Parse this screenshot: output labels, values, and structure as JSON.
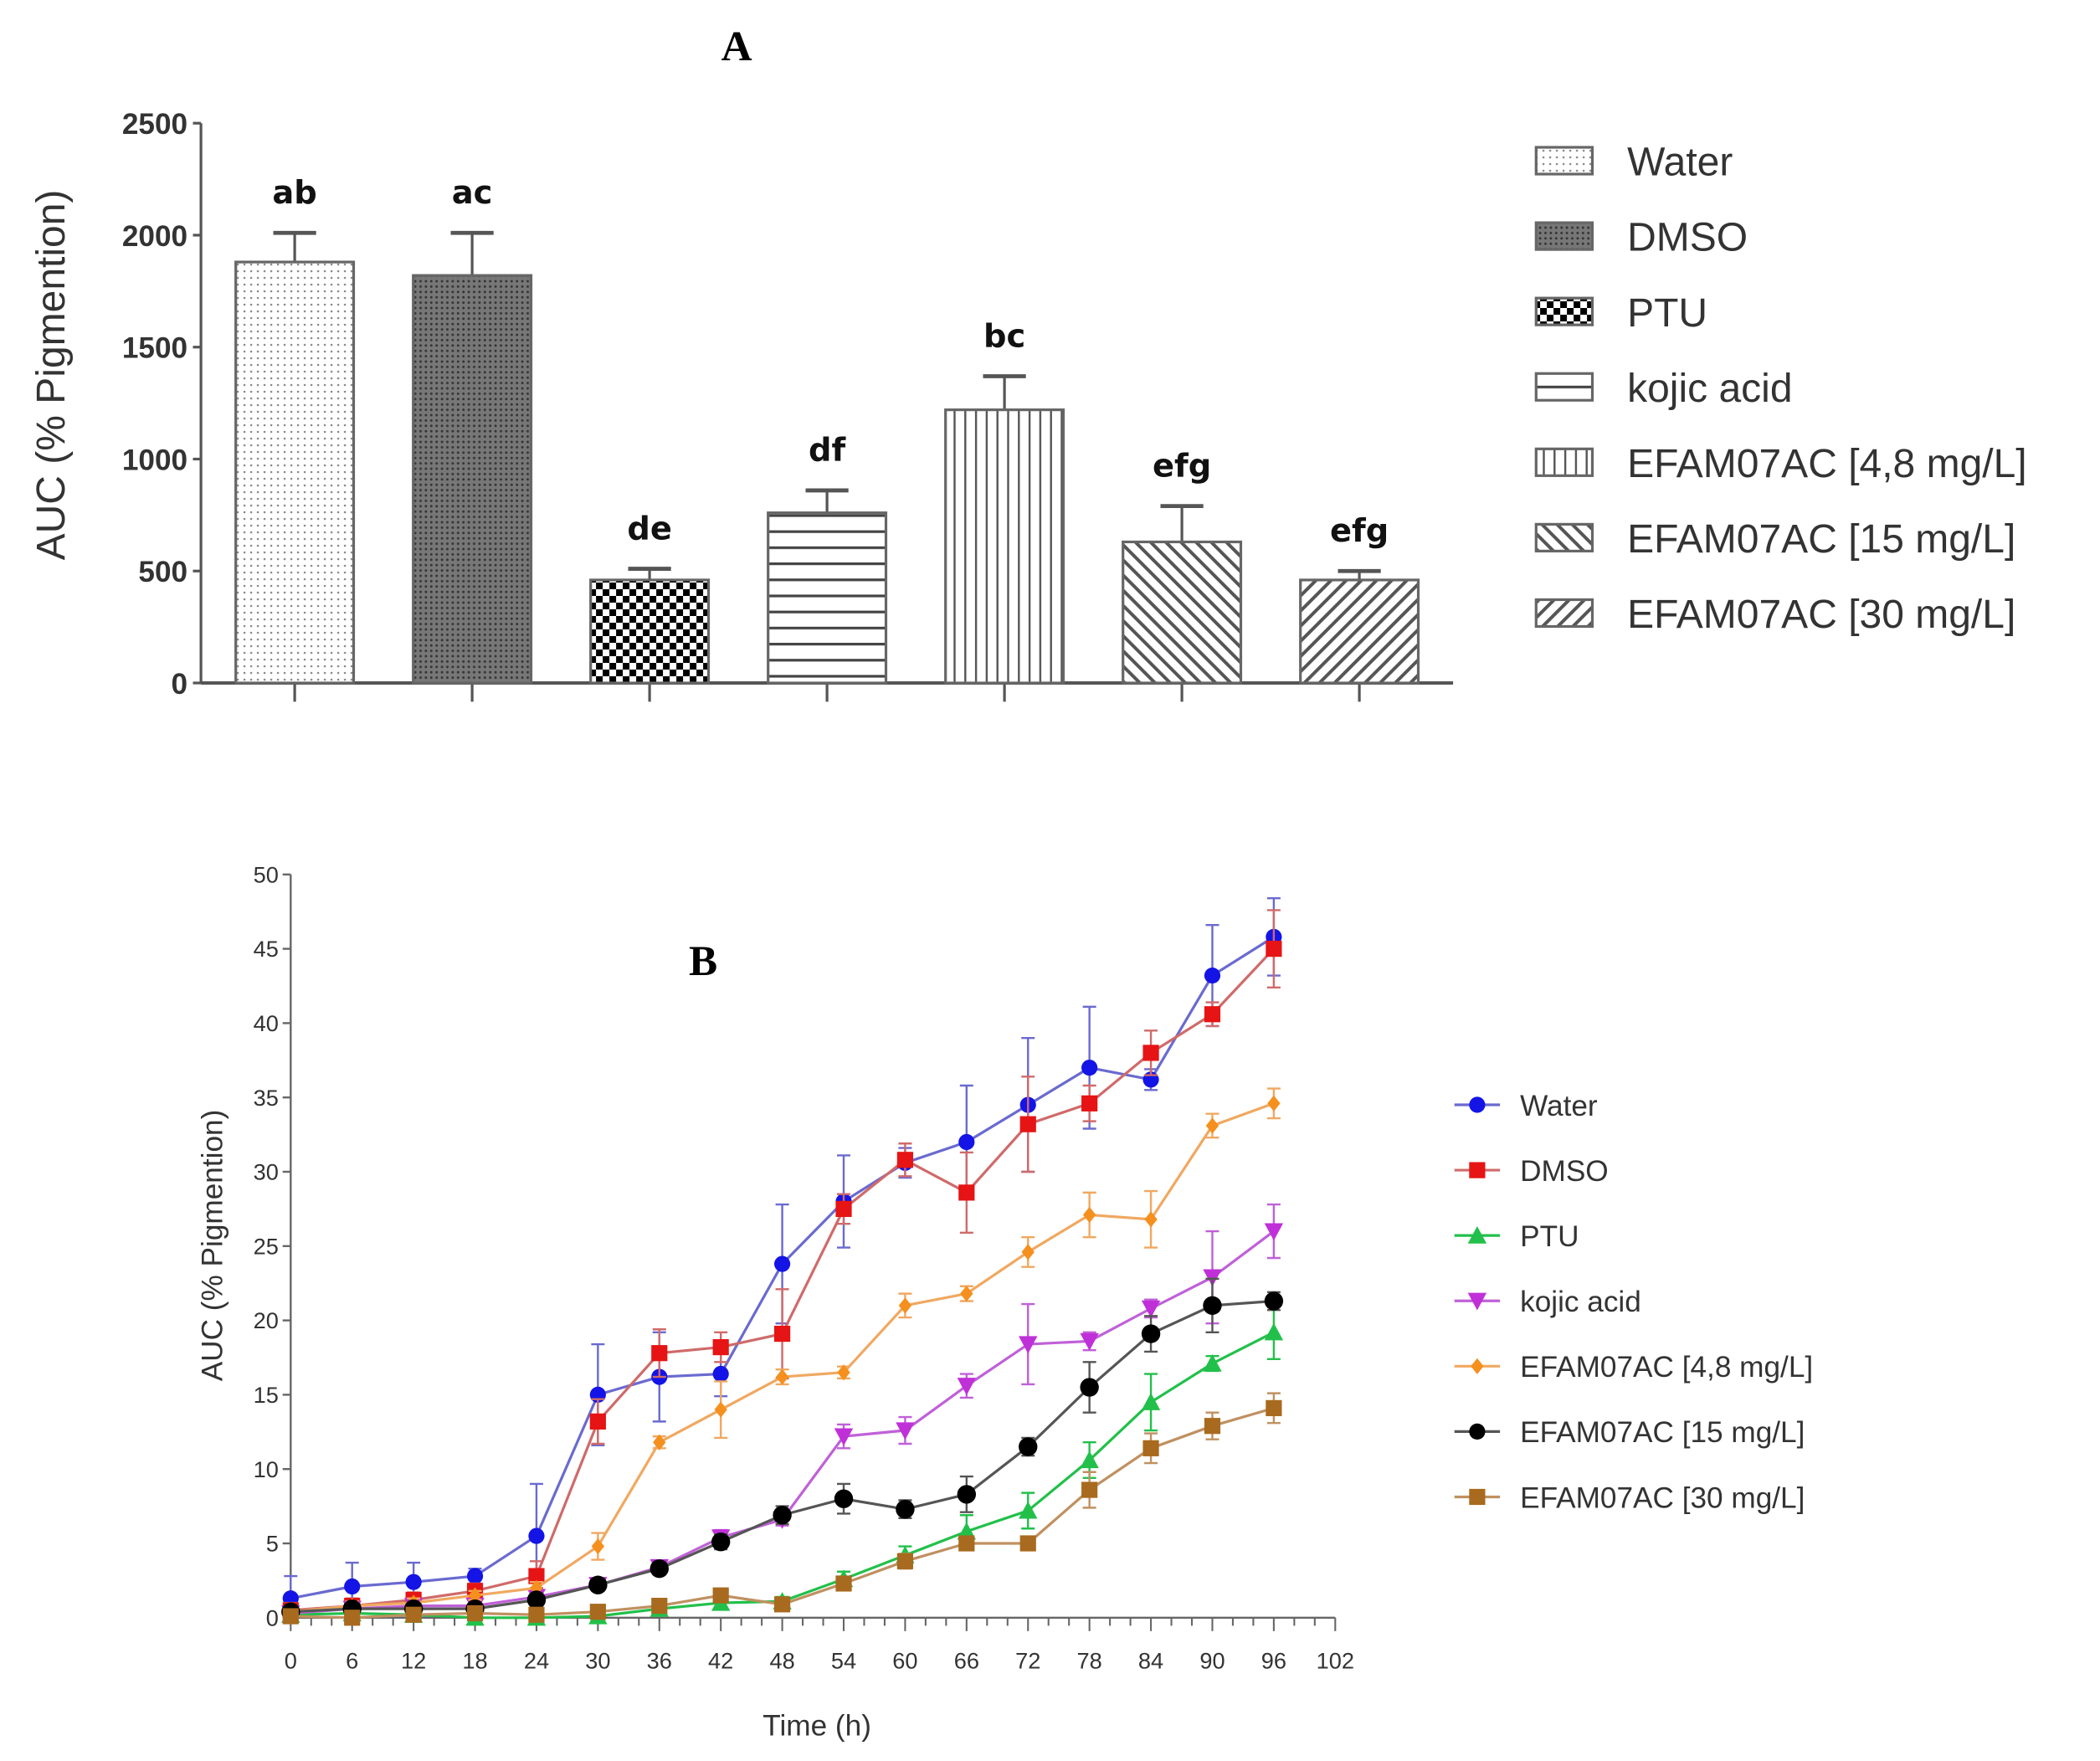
{
  "chart_data": [
    {
      "type": "bar",
      "panel_label": "A",
      "ylabel": "AUC (% Pigmention)",
      "ylim": [
        0,
        2500
      ],
      "yticks": [
        0,
        500,
        1000,
        1500,
        2000,
        2500
      ],
      "categories": [
        "Water",
        "DMSO",
        "PTU",
        "kojic acid",
        "EFAM07AC [4,8 mg/L]",
        "EFAM07AC [15 mg/L]",
        "EFAM07AC [30 mg/L]"
      ],
      "values": [
        1880,
        1820,
        460,
        760,
        1220,
        630,
        460
      ],
      "errors": [
        130,
        190,
        50,
        100,
        150,
        160,
        40
      ],
      "annotations": [
        "ab",
        "ac",
        "de",
        "df",
        "bc",
        "efg",
        "efg"
      ],
      "patterns": [
        "dots",
        "dense-crosshatch",
        "checker",
        "horizontal",
        "vertical",
        "diagonal-right",
        "diagonal-left"
      ],
      "legend_position": "right"
    },
    {
      "type": "line",
      "panel_label": "B",
      "xlabel": "Time (h)",
      "ylabel": "AUC (% Pigmention)",
      "xlim": [
        0,
        102
      ],
      "ylim": [
        0,
        50
      ],
      "xticks": [
        0,
        6,
        12,
        18,
        24,
        30,
        36,
        42,
        48,
        54,
        60,
        66,
        72,
        78,
        84,
        90,
        96,
        102
      ],
      "yticks": [
        0,
        5,
        10,
        15,
        20,
        25,
        30,
        35,
        40,
        45,
        50
      ],
      "x": [
        0,
        6,
        12,
        18,
        24,
        30,
        36,
        42,
        48,
        54,
        60,
        66,
        72,
        78,
        84,
        90,
        96
      ],
      "legend_position": "right",
      "series": [
        {
          "name": "Water",
          "color": "#1414e6",
          "line": "#6a6ad0",
          "marker": "circle",
          "values": [
            1.3,
            2.1,
            2.4,
            2.8,
            5.5,
            15,
            16.2,
            16.4,
            23.8,
            28,
            30.6,
            32,
            34.5,
            37,
            36.2,
            43.2,
            45.8
          ],
          "errors": [
            1.5,
            1.6,
            1.3,
            0.5,
            3.5,
            3.4,
            3,
            1.5,
            4,
            3.1,
            1,
            3.8,
            4.5,
            4.1,
            0.7,
            3.4,
            2.6
          ]
        },
        {
          "name": "DMSO",
          "color": "#e61414",
          "line": "#d06a6a",
          "marker": "square",
          "values": [
            0.5,
            0.8,
            1.2,
            1.8,
            2.8,
            13.2,
            17.8,
            18.2,
            19.1,
            27.5,
            30.8,
            28.6,
            33.2,
            34.6,
            38,
            40.6,
            45
          ],
          "errors": [
            0.5,
            0.5,
            0.5,
            0.5,
            1,
            1.5,
            1.6,
            1,
            3,
            1,
            1.1,
            2.7,
            3.2,
            1.2,
            1.5,
            0.8,
            2.6
          ]
        },
        {
          "name": "PTU",
          "color": "#22c04a",
          "line": "#22c04a",
          "marker": "triangle-up",
          "values": [
            0.2,
            0.3,
            0.2,
            0,
            0,
            0.1,
            0.6,
            1,
            1.1,
            2.6,
            4.2,
            5.8,
            7.2,
            10.6,
            14.5,
            17.1,
            19.2
          ],
          "errors": [
            0.2,
            0.2,
            0.2,
            0.1,
            0.1,
            0.2,
            0.3,
            0.3,
            0.3,
            0.5,
            0.6,
            1.1,
            1.2,
            1.2,
            1.9,
            0.5,
            1.8
          ]
        },
        {
          "name": "kojic acid",
          "color": "#c030d8",
          "line": "#c060d8",
          "marker": "triangle-down",
          "values": [
            0.3,
            0.6,
            0.8,
            0.8,
            1.4,
            2.2,
            3.4,
            5.4,
            6.6,
            12.2,
            12.6,
            15.6,
            18.4,
            18.6,
            20.8,
            22.9,
            26
          ],
          "errors": [
            0.3,
            0.3,
            0.3,
            0.3,
            0.4,
            0.4,
            0.4,
            0.5,
            0.4,
            0.8,
            0.9,
            0.8,
            2.7,
            0.6,
            0.6,
            3.1,
            1.8
          ]
        },
        {
          "name": "EFAM07AC [4,8 mg/L]",
          "color": "#f5901e",
          "line": "#f0a860",
          "marker": "diamond",
          "values": [
            0.4,
            0.8,
            1,
            1.5,
            2,
            4.8,
            11.8,
            14,
            16.2,
            16.5,
            21,
            21.8,
            24.6,
            27.1,
            26.8,
            33.1,
            34.6
          ],
          "errors": [
            0.3,
            0.3,
            0.3,
            0.3,
            0.4,
            0.9,
            0.4,
            1.9,
            0.5,
            0.4,
            0.8,
            0.5,
            1,
            1.5,
            1.9,
            0.8,
            1
          ]
        },
        {
          "name": "EFAM07AC [15 mg/L]",
          "color": "#000000",
          "line": "#555555",
          "marker": "circle",
          "values": [
            0.4,
            0.6,
            0.6,
            0.6,
            1.2,
            2.2,
            3.3,
            5.1,
            6.9,
            8,
            7.3,
            8.3,
            11.5,
            15.5,
            19.1,
            21,
            21.3
          ],
          "errors": [
            0.3,
            0.3,
            0.3,
            0.3,
            0.3,
            0.3,
            0.4,
            0.5,
            0.6,
            1,
            0.6,
            1.2,
            0.6,
            1.7,
            1.2,
            1.8,
            0.6
          ]
        },
        {
          "name": "EFAM07AC [30 mg/L]",
          "color": "#a86a1e",
          "line": "#c09060",
          "marker": "square",
          "values": [
            0.1,
            0,
            0.2,
            0.3,
            0.2,
            0.4,
            0.8,
            1.5,
            0.9,
            2.3,
            3.8,
            5,
            5,
            8.6,
            11.4,
            12.9,
            14.1
          ],
          "errors": [
            0.1,
            0.1,
            0.1,
            0.1,
            0.1,
            0.2,
            0.3,
            0.3,
            0.3,
            0.4,
            0.5,
            0.4,
            0.4,
            1.2,
            1,
            0.9,
            1
          ]
        }
      ]
    }
  ]
}
